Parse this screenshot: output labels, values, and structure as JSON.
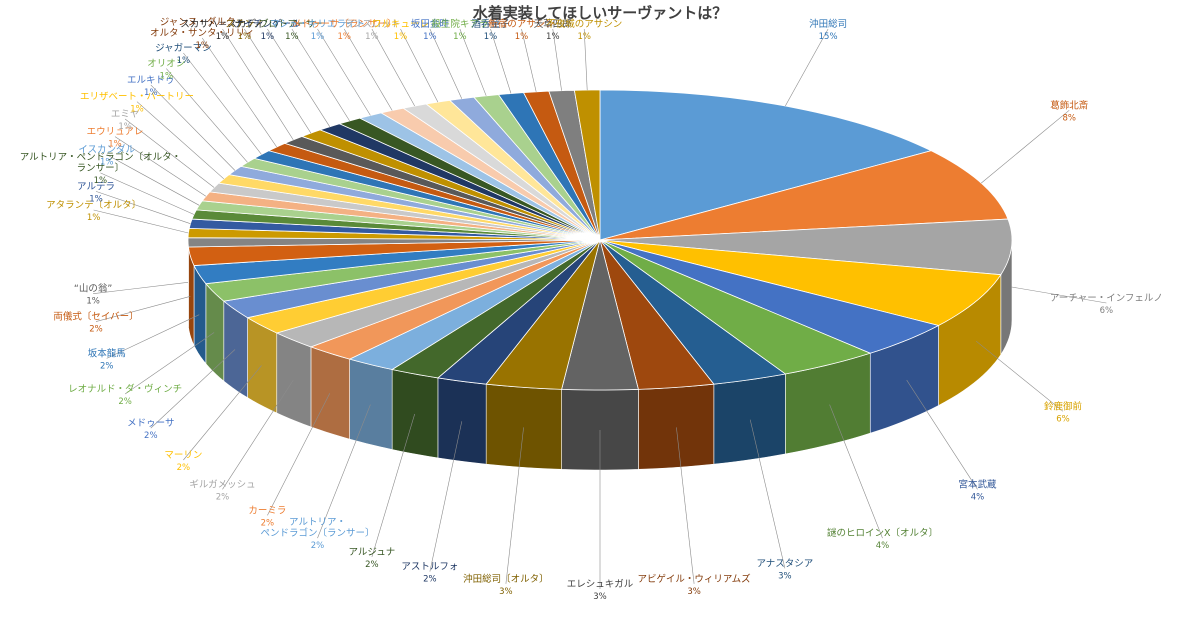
{
  "chart_data": {
    "type": "pie",
    "title": "水着実装してほしいサーヴァントは？",
    "style": "3d-exploded-perspective",
    "slices": [
      {
        "name": "沖田総司",
        "value": 15,
        "pct": "15%",
        "color": "#5B9BD5",
        "label_color": "#2E75B6"
      },
      {
        "name": "葛飾北斎",
        "value": 8,
        "pct": "8%",
        "color": "#ED7D31",
        "label_color": "#C55A11"
      },
      {
        "name": "アーチャー・インフェルノ",
        "value": 6,
        "pct": "6%",
        "color": "#A5A5A5",
        "label_color": "#7F7F7F"
      },
      {
        "name": "鈴鹿御前",
        "value": 6,
        "pct": "6%",
        "color": "#FFC000",
        "label_color": "#D9A300"
      },
      {
        "name": "宮本武蔵",
        "value": 4,
        "pct": "4%",
        "color": "#4472C4",
        "label_color": "#2F5597"
      },
      {
        "name": "謎のヒロインX〔オルタ〕",
        "value": 4,
        "pct": "4%",
        "color": "#70AD47",
        "label_color": "#548235"
      },
      {
        "name": "アナスタシア",
        "value": 3,
        "pct": "3%",
        "color": "#255E91",
        "label_color": "#1F4E79"
      },
      {
        "name": "アビゲイル・ウィリアムズ",
        "value": 3,
        "pct": "3%",
        "color": "#9E480E",
        "label_color": "#843C0C"
      },
      {
        "name": "エレシュキガル",
        "value": 3,
        "pct": "3%",
        "color": "#636363",
        "label_color": "#404040"
      },
      {
        "name": "沖田総司〔オルタ〕",
        "value": 3,
        "pct": "3%",
        "color": "#997300",
        "label_color": "#7F6000"
      },
      {
        "name": "アストルフォ",
        "value": 2,
        "pct": "2%",
        "color": "#264478",
        "label_color": "#1F3864"
      },
      {
        "name": "アルジュナ",
        "value": 2,
        "pct": "2%",
        "color": "#43682B",
        "label_color": "#375623"
      },
      {
        "name": "アルトリア・ペンドラゴン〔ランサー〕",
        "value": 2,
        "pct": "2%",
        "color": "#7CAFDD",
        "label_color": "#5B9BD5"
      },
      {
        "name": "カーミラ",
        "value": 2,
        "pct": "2%",
        "color": "#F1975A",
        "label_color": "#ED7D31"
      },
      {
        "name": "ギルガメッシュ",
        "value": 2,
        "pct": "2%",
        "color": "#B7B7B7",
        "label_color": "#A5A5A5"
      },
      {
        "name": "マーリン",
        "value": 2,
        "pct": "2%",
        "color": "#FFCD33",
        "label_color": "#FFC000"
      },
      {
        "name": "メドゥーサ",
        "value": 2,
        "pct": "2%",
        "color": "#698ED0",
        "label_color": "#4472C4"
      },
      {
        "name": "レオナルド・ダ・ヴィンチ",
        "value": 2,
        "pct": "2%",
        "color": "#8CC168",
        "label_color": "#70AD47"
      },
      {
        "name": "坂本龍馬",
        "value": 2,
        "pct": "2%",
        "color": "#327DC2",
        "label_color": "#2E75B6"
      },
      {
        "name": "両儀式〔セイバー〕",
        "value": 2,
        "pct": "2%",
        "color": "#D26012",
        "label_color": "#C55A11"
      },
      {
        "name": "“山の翁”",
        "value": 1,
        "pct": "1%",
        "color": "#848484",
        "label_color": "#595959"
      },
      {
        "name": "アタランテ〔オルタ〕",
        "value": 1,
        "pct": "1%",
        "color": "#CC9A00",
        "label_color": "#BF9000"
      },
      {
        "name": "アルテラ",
        "value": 1,
        "pct": "1%",
        "color": "#335AA1",
        "label_color": "#2F5597"
      },
      {
        "name": "アルトリア・ペンドラゴン〔オルタ・ランサー〕",
        "value": 1,
        "pct": "1%",
        "color": "#5A8A39",
        "label_color": "#375623"
      },
      {
        "name": "イスカンダル",
        "value": 1,
        "pct": "1%",
        "color": "#A9D18E",
        "label_color": "#5B9BD5"
      },
      {
        "name": "エウリュアレ",
        "value": 1,
        "pct": "1%",
        "color": "#F4B183",
        "label_color": "#ED7D31"
      },
      {
        "name": "エミヤ",
        "value": 1,
        "pct": "1%",
        "color": "#C9C9C9",
        "label_color": "#A5A5A5"
      },
      {
        "name": "エリザベート・バートリー",
        "value": 1,
        "pct": "1%",
        "color": "#FFD966",
        "label_color": "#FFC000"
      },
      {
        "name": "エルキドゥ",
        "value": 1,
        "pct": "1%",
        "color": "#8FAADC",
        "label_color": "#4472C4"
      },
      {
        "name": "オリオン",
        "value": 1,
        "pct": "1%",
        "color": "#A9D18E",
        "label_color": "#70AD47"
      },
      {
        "name": "ジャガーマン",
        "value": 1,
        "pct": "1%",
        "color": "#2E75B6",
        "label_color": "#1F4E79"
      },
      {
        "name": "ジャンヌ・ダルク・オルタ・サンタ・リリィ",
        "value": 1,
        "pct": "1%",
        "color": "#C55A11",
        "label_color": "#843C0C"
      },
      {
        "name": "スカサハ＝スカディ",
        "value": 1,
        "pct": "1%",
        "color": "#595959",
        "label_color": "#262626"
      },
      {
        "name": "ステンノ",
        "value": 1,
        "pct": "1%",
        "color": "#BF9000",
        "label_color": "#7F6000"
      },
      {
        "name": "ナイチンゲール",
        "value": 1,
        "pct": "1%",
        "color": "#203864",
        "label_color": "#1F3864"
      },
      {
        "name": "ブロトアーサー",
        "value": 1,
        "pct": "1%",
        "color": "#385723",
        "label_color": "#375623"
      },
      {
        "name": "マシュ・キリエライト",
        "value": 1,
        "pct": "1%",
        "color": "#9DC3E6",
        "label_color": "#5B9BD5"
      },
      {
        "name": "メドゥーサ〔ランサー〕",
        "value": 1,
        "pct": "1%",
        "color": "#F8CBAD",
        "label_color": "#ED7D31"
      },
      {
        "name": "ランスロット",
        "value": 1,
        "pct": "1%",
        "color": "#D9D9D9",
        "label_color": "#A5A5A5"
      },
      {
        "name": "ワルキューレ",
        "value": 1,
        "pct": "1%",
        "color": "#FFE699",
        "label_color": "#FFC000"
      },
      {
        "name": "坂田金時",
        "value": 1,
        "pct": "1%",
        "color": "#8FAADC",
        "label_color": "#4472C4"
      },
      {
        "name": "殺生院キアラ",
        "value": 1,
        "pct": "1%",
        "color": "#A9D18E",
        "label_color": "#70AD47"
      },
      {
        "name": "酒呑童子",
        "value": 1,
        "pct": "1%",
        "color": "#2E75B6",
        "label_color": "#1F4E79"
      },
      {
        "name": "新宿のアサシン",
        "value": 1,
        "pct": "1%",
        "color": "#C55A11",
        "label_color": "#C55A11"
      },
      {
        "name": "天草四郎",
        "value": 1,
        "pct": "1%",
        "color": "#7F7F7F",
        "label_color": "#404040"
      },
      {
        "name": "不夜城のアサシン",
        "value": 1,
        "pct": "1%",
        "color": "#BF9000",
        "label_color": "#BF9000"
      }
    ]
  }
}
